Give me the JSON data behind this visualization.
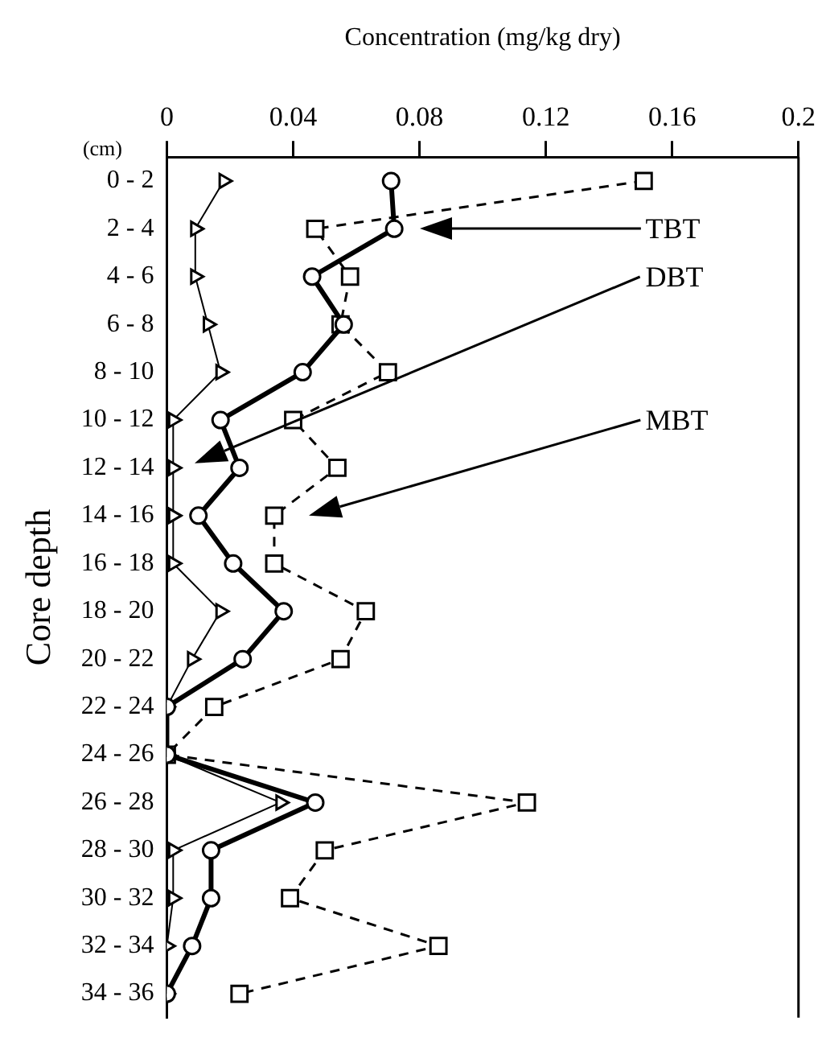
{
  "chart_data": {
    "type": "line",
    "orientation": "horizontal",
    "xlabel": "Concentration (mg/kg dry)",
    "ylabel": "Core depth",
    "categories": [
      "0 - 2",
      "2 - 4",
      "4 - 6",
      "6 - 8",
      "8 - 10",
      "10 - 12",
      "12 - 14",
      "14 - 16",
      "16 - 18",
      "18 - 20",
      "20 - 22",
      "22 - 24",
      "24 - 26",
      "26 - 28",
      "28 - 30",
      "30 - 32",
      "32 - 34",
      "34 - 36"
    ],
    "xlim": [
      0,
      0.2
    ],
    "xticks": [
      0,
      0.04,
      0.08,
      0.12,
      0.16,
      0.2
    ],
    "grid": false,
    "legend": false,
    "series": [
      {
        "color": "#000000",
        "marker": "circle",
        "line_style": "solid",
        "values": [
          0.071,
          0.072,
          0.046,
          0.056,
          0.043,
          0.017,
          0.023,
          0.01,
          0.021,
          0.037,
          0.024,
          0,
          0,
          0.047,
          0.014,
          0.014,
          0.008,
          0
        ]
      },
      {
        "color": "#000000",
        "marker": "square",
        "line_style": "dashed",
        "values": [
          0.151,
          0.047,
          0.058,
          0.055,
          0.07,
          0.04,
          0.054,
          0.034,
          0.034,
          0.063,
          0.055,
          0.015,
          0,
          0.114,
          0.05,
          0.039,
          0.086,
          0.023
        ]
      },
      {
        "color": "#000000",
        "marker": "triangle",
        "line_style": "solid",
        "values": [
          0.018,
          0.009,
          0.009,
          0.013,
          0.017,
          0.002,
          0.002,
          0.002,
          0.002,
          0.017,
          0.008,
          0,
          0,
          0.036,
          0.002,
          0.002,
          0,
          0
        ]
      }
    ],
    "annotations": [
      "(cm)",
      "TBT",
      "DBT",
      "MBT"
    ]
  }
}
